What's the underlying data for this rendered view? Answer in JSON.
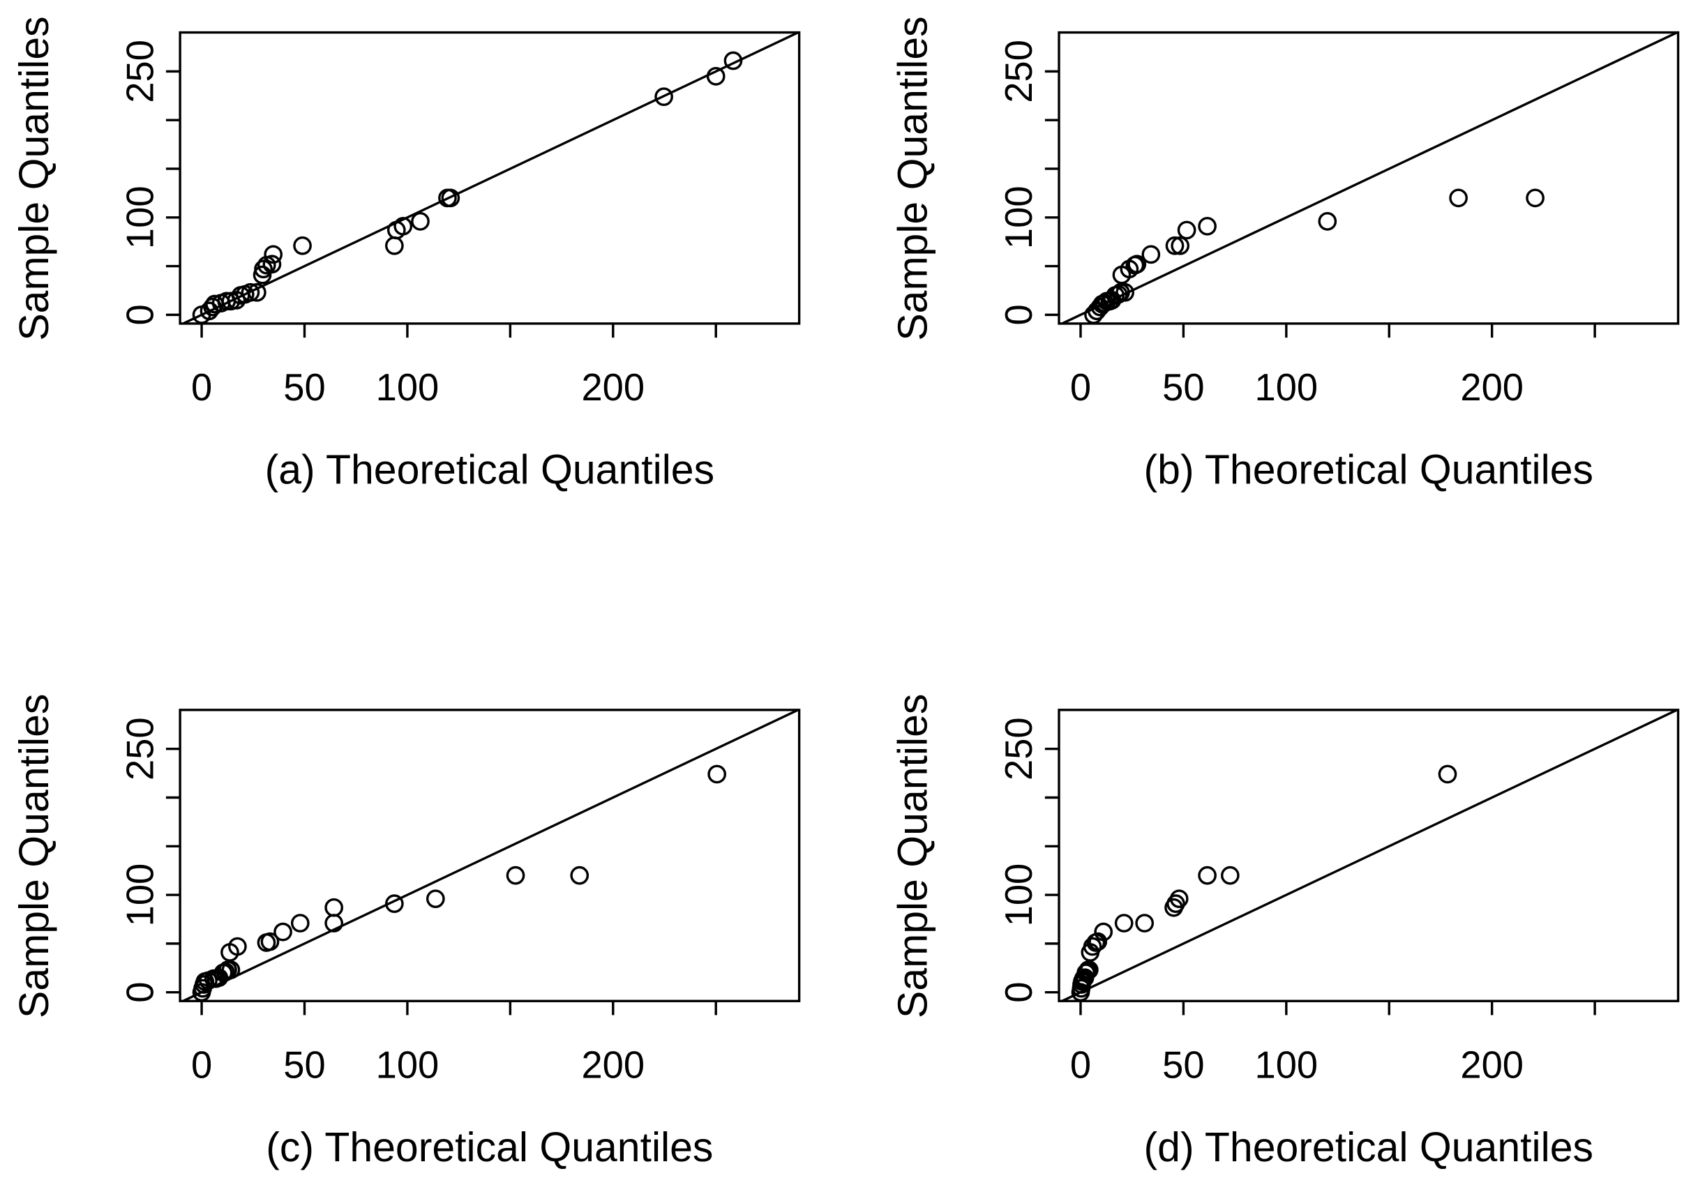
{
  "chart_data": [
    {
      "type": "scatter",
      "xlabel": "(a) Theoretical Quantiles",
      "ylabel": "Sample Quantiles",
      "xlim": [
        -10.5,
        290.5
      ],
      "ylim": [
        -9,
        290
      ],
      "color": "#000000",
      "x_ticks": [
        {
          "value": 0,
          "label": "0"
        },
        {
          "value": 50,
          "label": "50"
        },
        {
          "value": 100,
          "label": "100"
        },
        {
          "value": 150,
          "label": ""
        },
        {
          "value": 200,
          "label": "200"
        },
        {
          "value": 250,
          "label": ""
        }
      ],
      "y_ticks": [
        {
          "value": 0,
          "label": "0"
        },
        {
          "value": 50,
          "label": ""
        },
        {
          "value": 100,
          "label": "100"
        },
        {
          "value": 150,
          "label": ""
        },
        {
          "value": 200,
          "label": ""
        },
        {
          "value": 250,
          "label": "250"
        }
      ],
      "reference_line": {
        "slope": 1,
        "intercept": 0
      },
      "points": [
        [
          0,
          0
        ],
        [
          3.7,
          4
        ],
        [
          5.3,
          8
        ],
        [
          6.3,
          11
        ],
        [
          9.5,
          12
        ],
        [
          12.1,
          14
        ],
        [
          14.2,
          14
        ],
        [
          16.9,
          15
        ],
        [
          19,
          20
        ],
        [
          21.1,
          21
        ],
        [
          23.7,
          23
        ],
        [
          26.9,
          23
        ],
        [
          29.5,
          41
        ],
        [
          30,
          47
        ],
        [
          31.6,
          51
        ],
        [
          34.2,
          52
        ],
        [
          34.8,
          62
        ],
        [
          49,
          71
        ],
        [
          93.7,
          71
        ],
        [
          94.7,
          87
        ],
        [
          97.9,
          91
        ],
        [
          106.3,
          96
        ],
        [
          119.5,
          120
        ],
        [
          121,
          120
        ],
        [
          224.7,
          224
        ],
        [
          250,
          245
        ],
        [
          258.4,
          261
        ]
      ]
    },
    {
      "type": "scatter",
      "xlabel": "(b) Theoretical Quantiles",
      "ylabel": "Sample Quantiles",
      "xlim": [
        -10.5,
        290.5
      ],
      "ylim": [
        -9,
        290
      ],
      "color": "#000000",
      "x_ticks": [
        {
          "value": 0,
          "label": "0"
        },
        {
          "value": 50,
          "label": "50"
        },
        {
          "value": 100,
          "label": "100"
        },
        {
          "value": 150,
          "label": ""
        },
        {
          "value": 200,
          "label": "200"
        },
        {
          "value": 250,
          "label": ""
        }
      ],
      "y_ticks": [
        {
          "value": 0,
          "label": "0"
        },
        {
          "value": 50,
          "label": ""
        },
        {
          "value": 100,
          "label": "100"
        },
        {
          "value": 150,
          "label": ""
        },
        {
          "value": 200,
          "label": ""
        },
        {
          "value": 250,
          "label": "250"
        }
      ],
      "reference_line": {
        "slope": 1,
        "intercept": 0
      },
      "points": [
        [
          6.3,
          0
        ],
        [
          7.9,
          4
        ],
        [
          9.5,
          8
        ],
        [
          10.5,
          11
        ],
        [
          11.6,
          12
        ],
        [
          12.7,
          14
        ],
        [
          14.2,
          14
        ],
        [
          15.3,
          15
        ],
        [
          16.9,
          20
        ],
        [
          18.4,
          21
        ],
        [
          19.5,
          23
        ],
        [
          21.6,
          23
        ],
        [
          20,
          41
        ],
        [
          23.7,
          47
        ],
        [
          26.4,
          51
        ],
        [
          27.4,
          52
        ],
        [
          34.2,
          62
        ],
        [
          45.8,
          71
        ],
        [
          48.4,
          71
        ],
        [
          51.6,
          87
        ],
        [
          61.6,
          91
        ],
        [
          120,
          96
        ],
        [
          183.7,
          120
        ],
        [
          221,
          120
        ]
      ]
    },
    {
      "type": "scatter",
      "xlabel": "(c) Theoretical Quantiles",
      "ylabel": "Sample Quantiles",
      "xlim": [
        -10.5,
        290.5
      ],
      "ylim": [
        -9,
        290
      ],
      "color": "#000000",
      "x_ticks": [
        {
          "value": 0,
          "label": "0"
        },
        {
          "value": 50,
          "label": "50"
        },
        {
          "value": 100,
          "label": "100"
        },
        {
          "value": 150,
          "label": ""
        },
        {
          "value": 200,
          "label": "200"
        },
        {
          "value": 250,
          "label": ""
        }
      ],
      "y_ticks": [
        {
          "value": 0,
          "label": "0"
        },
        {
          "value": 50,
          "label": ""
        },
        {
          "value": 100,
          "label": "100"
        },
        {
          "value": 150,
          "label": ""
        },
        {
          "value": 200,
          "label": ""
        },
        {
          "value": 250,
          "label": "250"
        }
      ],
      "reference_line": {
        "slope": 1,
        "intercept": 0
      },
      "points": [
        [
          0,
          0
        ],
        [
          0.5,
          4
        ],
        [
          1.1,
          8
        ],
        [
          1.6,
          11
        ],
        [
          3.2,
          12
        ],
        [
          5.8,
          14
        ],
        [
          7,
          14
        ],
        [
          8.4,
          15
        ],
        [
          10.5,
          20
        ],
        [
          11.6,
          21
        ],
        [
          12.7,
          23
        ],
        [
          14.2,
          23
        ],
        [
          13.7,
          41
        ],
        [
          17.4,
          47
        ],
        [
          31.5,
          51
        ],
        [
          33.2,
          52
        ],
        [
          39.5,
          62
        ],
        [
          47.9,
          71
        ],
        [
          64.3,
          71
        ],
        [
          64.3,
          87
        ],
        [
          93.7,
          91
        ],
        [
          113.7,
          96
        ],
        [
          152.6,
          120
        ],
        [
          183.7,
          120
        ],
        [
          250.5,
          224
        ]
      ]
    },
    {
      "type": "scatter",
      "xlabel": "(d) Theoretical Quantiles",
      "ylabel": "Sample Quantiles",
      "xlim": [
        -10.5,
        290.5
      ],
      "ylim": [
        -9,
        290
      ],
      "color": "#000000",
      "x_ticks": [
        {
          "value": 0,
          "label": "0"
        },
        {
          "value": 50,
          "label": "50"
        },
        {
          "value": 100,
          "label": "100"
        },
        {
          "value": 150,
          "label": ""
        },
        {
          "value": 200,
          "label": "200"
        },
        {
          "value": 250,
          "label": ""
        }
      ],
      "y_ticks": [
        {
          "value": 0,
          "label": "0"
        },
        {
          "value": 50,
          "label": ""
        },
        {
          "value": 100,
          "label": "100"
        },
        {
          "value": 150,
          "label": ""
        },
        {
          "value": 200,
          "label": ""
        },
        {
          "value": 250,
          "label": "250"
        }
      ],
      "reference_line": {
        "slope": 1,
        "intercept": 0
      },
      "points": [
        [
          0,
          0
        ],
        [
          0.3,
          4
        ],
        [
          0.5,
          8
        ],
        [
          0.8,
          11
        ],
        [
          1.1,
          12
        ],
        [
          1.4,
          14
        ],
        [
          1.7,
          14
        ],
        [
          2.1,
          15
        ],
        [
          2.6,
          20
        ],
        [
          3.2,
          21
        ],
        [
          3.7,
          23
        ],
        [
          4.2,
          23
        ],
        [
          4.7,
          41
        ],
        [
          5.8,
          47
        ],
        [
          7.4,
          51
        ],
        [
          8.4,
          52
        ],
        [
          11.1,
          62
        ],
        [
          21.1,
          71
        ],
        [
          31.1,
          71
        ],
        [
          45.3,
          87
        ],
        [
          46.3,
          91
        ],
        [
          47.9,
          96
        ],
        [
          61.6,
          120
        ],
        [
          72.7,
          120
        ],
        [
          178.4,
          224
        ]
      ]
    }
  ]
}
